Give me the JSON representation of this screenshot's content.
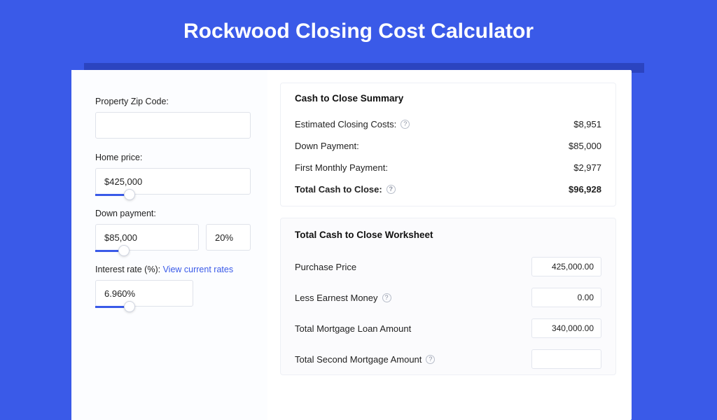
{
  "page": {
    "title": "Rockwood Closing Cost Calculator",
    "bg_color": "#3a5ae8",
    "shadow_color": "#2b44c0",
    "card_bg": "#ffffff"
  },
  "left": {
    "zip": {
      "label": "Property Zip Code:",
      "value": ""
    },
    "home_price": {
      "label": "Home price:",
      "value": "$425,000",
      "slider_pct": 22
    },
    "down_payment": {
      "label": "Down payment:",
      "value": "$85,000",
      "pct_value": "20%",
      "slider_pct": 28
    },
    "interest": {
      "label_prefix": "Interest rate (%): ",
      "link_text": "View current rates",
      "value": "6.960%",
      "slider_pct": 35
    }
  },
  "summary": {
    "title": "Cash to Close Summary",
    "rows": [
      {
        "label": "Estimated Closing Costs:",
        "help": true,
        "value": "$8,951",
        "bold": false
      },
      {
        "label": "Down Payment:",
        "help": false,
        "value": "$85,000",
        "bold": false
      },
      {
        "label": "First Monthly Payment:",
        "help": false,
        "value": "$2,977",
        "bold": false
      },
      {
        "label": "Total Cash to Close:",
        "help": true,
        "value": "$96,928",
        "bold": true
      }
    ]
  },
  "worksheet": {
    "title": "Total Cash to Close Worksheet",
    "rows": [
      {
        "label": "Purchase Price",
        "help": false,
        "value": "425,000.00"
      },
      {
        "label": "Less Earnest Money",
        "help": true,
        "value": "0.00"
      },
      {
        "label": "Total Mortgage Loan Amount",
        "help": false,
        "value": "340,000.00"
      },
      {
        "label": "Total Second Mortgage Amount",
        "help": true,
        "value": ""
      }
    ]
  },
  "style": {
    "input_border": "#dfe2ea",
    "slider_fill": "#3a5ae8",
    "link_color": "#3a5ae8",
    "help_border": "#b7bdc9",
    "ws_bg": "#fbfbfd"
  }
}
